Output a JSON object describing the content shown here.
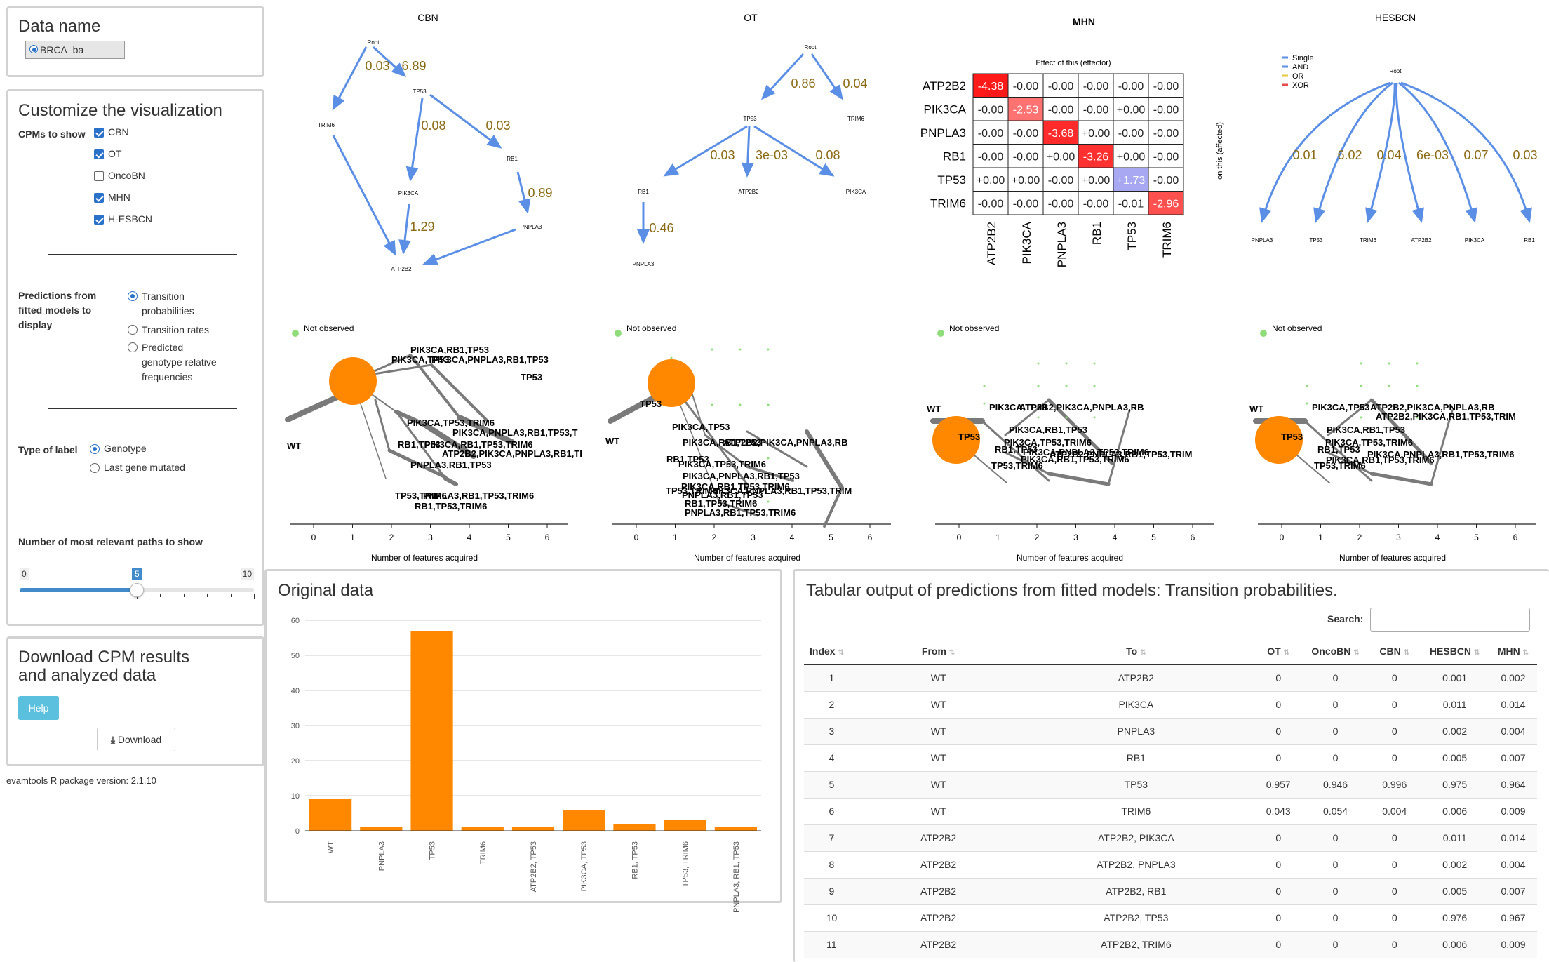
{
  "sidebar": {
    "data_name_title": "Data name",
    "dataset_button": "BRCA_ba",
    "customize_title": "Customize the visualization",
    "cpms_label": "CPMs to show",
    "cpms": [
      {
        "label": "CBN",
        "checked": true
      },
      {
        "label": "OT",
        "checked": true
      },
      {
        "label": "OncoBN",
        "checked": false
      },
      {
        "label": "MHN",
        "checked": true
      },
      {
        "label": "H-ESBCN",
        "checked": true
      }
    ],
    "predictions_label": "Predictions from fitted models to display",
    "predictions": [
      {
        "label": "Transition probabilities",
        "selected": true
      },
      {
        "label": "Transition rates",
        "selected": false
      },
      {
        "label": "Predicted genotype relative frequencies",
        "selected": false
      }
    ],
    "label_type_label": "Type of label",
    "label_types": [
      {
        "label": "Genotype",
        "selected": true
      },
      {
        "label": "Last gene mutated",
        "selected": false
      }
    ],
    "paths_label": "Number of most relevant paths to show",
    "slider": {
      "min": "0",
      "max": "10",
      "value": "5",
      "fraction": 0.5
    },
    "download_title": "Download CPM results and analyzed data",
    "help_button": "Help",
    "download_button": "Download",
    "version": "evamtools R package version: 2.1.10"
  },
  "cpm_plots": {
    "cbn": {
      "title": "CBN",
      "nodes": {
        "root": "Root",
        "tp53": "TP53",
        "trim6": "TRIM6",
        "rb1": "RB1",
        "pik3ca": "PIK3CA",
        "pnpla3": "PNPLA3",
        "atp2b2": "ATP2B2"
      },
      "edges": [
        "0.03",
        "6.89",
        "0.08",
        "0.03",
        "0.89",
        "1.29"
      ]
    },
    "ot": {
      "title": "OT",
      "nodes": {
        "root": "Root",
        "tp53": "TP53",
        "trim6": "TRIM6",
        "rb1": "RB1",
        "atp2b2": "ATP2B2",
        "pik3ca": "PIK3CA",
        "pnpla3": "PNPLA3"
      },
      "edges": [
        "0.86",
        "0.04",
        "0.03",
        "3e-03",
        "0.08",
        "0.46"
      ]
    },
    "mhn": {
      "title": "MHN",
      "top_label": "Effect of this (effector)",
      "side_label": "on this (affected)",
      "genes": [
        "ATP2B2",
        "PIK3CA",
        "PNPLA3",
        "RB1",
        "TP53",
        "TRIM6"
      ],
      "matrix": [
        [
          "-4.38",
          "-0.00",
          "-0.00",
          "-0.00",
          "-0.00",
          "-0.00"
        ],
        [
          "-0.00",
          "-2.53",
          "-0.00",
          "-0.00",
          "+0.00",
          "-0.00"
        ],
        [
          "-0.00",
          "-0.00",
          "-3.68",
          "+0.00",
          "-0.00",
          "-0.00"
        ],
        [
          "-0.00",
          "-0.00",
          "+0.00",
          "-3.26",
          "+0.00",
          "-0.00"
        ],
        [
          "+0.00",
          "+0.00",
          "-0.00",
          "+0.00",
          "+1.73",
          "-0.00"
        ],
        [
          "-0.00",
          "-0.00",
          "-0.00",
          "-0.00",
          "-0.01",
          "-2.96"
        ]
      ]
    },
    "hesbcn": {
      "title": "HESBCN",
      "legend": [
        "Single",
        "AND",
        "OR",
        "XOR"
      ],
      "legend_colors": [
        "#5b8fe6",
        "#5b8fe6",
        "#e6c93a",
        "#e64a4a"
      ],
      "root": "Root",
      "leaves": [
        "PNPLA3",
        "TP53",
        "TRIM6",
        "ATP2B2",
        "PIK3CA",
        "RB1"
      ],
      "edges": [
        "0.01",
        "6.02",
        "0.04",
        "6e-03",
        "0.07",
        "0.03"
      ]
    }
  },
  "paths": {
    "legend": "Not observed",
    "xlabel": "Number of features acquired",
    "ticks": [
      "0",
      "1",
      "2",
      "3",
      "4",
      "5",
      "6"
    ],
    "cbn": {
      "labels": [
        "PIK3CA,RB1,TP53",
        "PIK3CA,TP53",
        "PIK3CA,PNPLA3,RB1,TP53",
        "TP53",
        "PIK3CA,TP53,TRIM6",
        "PIK3CA,PNPLA3,RB1,TP53,T",
        "WT",
        "RB1,TP53",
        "PIK3CA,RB1,TP53,TRIM6",
        "ATP2B2,PIK3CA,PNPLA3,RB1,TI",
        "PNPLA3,RB1,TP53",
        "TP53,TRIM6",
        "PNPLA3,RB1,TP53,TRIM6",
        "RB1,TP53,TRIM6"
      ]
    },
    "ot": {
      "labels": [
        "TP53",
        "PIK3CA,TP53",
        "WT",
        "PIK3CA,RB1,TP53",
        "ATP2B2,PIK3CA,PNPLA3,RB",
        "RB1,TP53",
        "PIK3CA,TP53,TRIM6",
        "PIK3CA,PNPLA3,RB1,TP53",
        "PIK3CA,RB1,TP53,TRIM6",
        "PNPLA3,RB1,TP53",
        "TP53,TRIM6",
        "PIK3CA,PNPLA3,RB1,TP53,TRIM",
        "RB1,TP53,TRIM6",
        "PNPLA3,RB1,TP53,TRIM6"
      ]
    },
    "mhn": {
      "labels": [
        "WT",
        "PIK3CA,TP53",
        "ATP2B2,PIK3CA,PNPLA3,RB",
        "TP53",
        "PIK3CA,RB1,TP53",
        "PIK3CA,TP53,TRIM6",
        "RB1,TP53",
        "PIK3CA,PNPLA3,TP53,TRIM6",
        "PIK3CA,RB1,TP53,TRIM6",
        "ATP2B2,PNPLA3,RB1,TP53,TRIM",
        "TP53,TRIM6"
      ]
    },
    "hesbcn": {
      "labels": [
        "WT",
        "PIK3CA,TP53",
        "ATP2B2,PIK3CA,PNPLA3,RB",
        "ATP2B2,PIK3CA,RB1,TP53,TRIM",
        "TP53",
        "PIK3CA,RB1,TP53",
        "PIK3CA,TP53,TRIM6",
        "RB1,TP53",
        "PIK3CA,PNPLA3,RB1,TP53,TRIM6",
        "PIK3CA,RB1,TP53,TRIM6",
        "TP53,TRIM6"
      ]
    }
  },
  "original_data": {
    "title": "Original data",
    "chart_data": {
      "type": "bar",
      "categories": [
        "WT",
        "PNPLA3",
        "TP53",
        "TRIM6",
        "ATP2B2, TP53",
        "PIK3CA, TP53",
        "RB1, TP53",
        "TP53, TRIM6",
        "PNPLA3, RB1, TP53"
      ],
      "values": [
        9,
        1,
        57,
        1,
        1,
        6,
        2,
        3,
        1
      ],
      "ylim": [
        0,
        60
      ],
      "yticks": [
        "0",
        "10",
        "20",
        "30",
        "40",
        "50",
        "60"
      ],
      "color": "#ff8800"
    }
  },
  "table": {
    "title": "Tabular output of predictions from fitted models: Transition probabilities.",
    "search_label": "Search:",
    "headers": [
      "Index",
      "From",
      "To",
      "OT",
      "OncoBN",
      "CBN",
      "HESBCN",
      "MHN"
    ],
    "rows": [
      [
        "1",
        "WT",
        "ATP2B2",
        "0",
        "0",
        "0",
        "0.001",
        "0.002"
      ],
      [
        "2",
        "WT",
        "PIK3CA",
        "0",
        "0",
        "0",
        "0.011",
        "0.014"
      ],
      [
        "3",
        "WT",
        "PNPLA3",
        "0",
        "0",
        "0",
        "0.002",
        "0.004"
      ],
      [
        "4",
        "WT",
        "RB1",
        "0",
        "0",
        "0",
        "0.005",
        "0.007"
      ],
      [
        "5",
        "WT",
        "TP53",
        "0.957",
        "0.946",
        "0.996",
        "0.975",
        "0.964"
      ],
      [
        "6",
        "WT",
        "TRIM6",
        "0.043",
        "0.054",
        "0.004",
        "0.006",
        "0.009"
      ],
      [
        "7",
        "ATP2B2",
        "ATP2B2, PIK3CA",
        "0",
        "0",
        "0",
        "0.011",
        "0.014"
      ],
      [
        "8",
        "ATP2B2",
        "ATP2B2, PNPLA3",
        "0",
        "0",
        "0",
        "0.002",
        "0.004"
      ],
      [
        "9",
        "ATP2B2",
        "ATP2B2, RB1",
        "0",
        "0",
        "0",
        "0.005",
        "0.007"
      ],
      [
        "10",
        "ATP2B2",
        "ATP2B2, TP53",
        "0",
        "0",
        "0",
        "0.976",
        "0.967"
      ],
      [
        "11",
        "ATP2B2",
        "ATP2B2, TRIM6",
        "0",
        "0",
        "0",
        "0.006",
        "0.009"
      ]
    ]
  }
}
